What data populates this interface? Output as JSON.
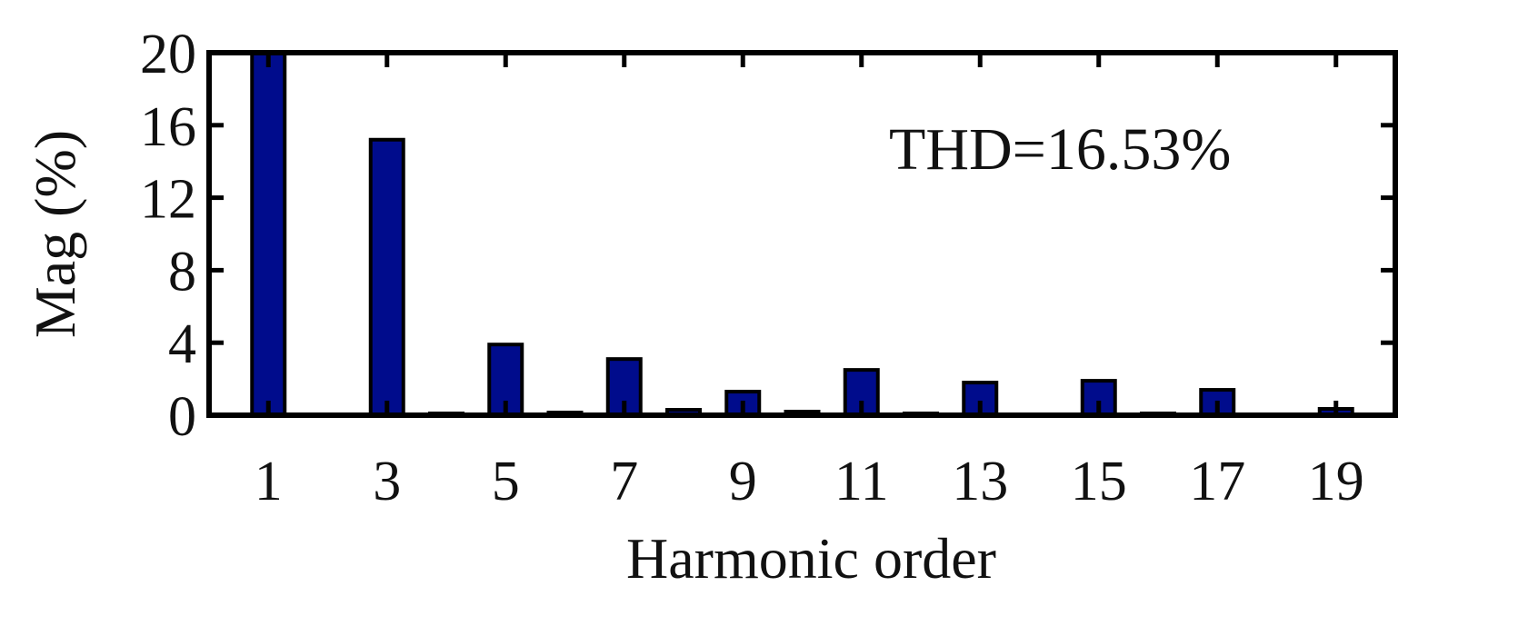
{
  "chart_data": {
    "type": "bar",
    "title": "",
    "xlabel": "Harmonic order",
    "ylabel": "Mag (%)",
    "annotation": "THD=16.53%",
    "ylim": [
      0,
      20
    ],
    "xlim": [
      0,
      20
    ],
    "y_ticks": [
      "0",
      "4",
      "8",
      "12",
      "16",
      "20"
    ],
    "x_ticks": [
      "1",
      "3",
      "5",
      "7",
      "9",
      "11",
      "13",
      "15",
      "17",
      "19"
    ],
    "categories": [
      "1",
      "2",
      "3",
      "4",
      "5",
      "6",
      "7",
      "8",
      "9",
      "10",
      "11",
      "12",
      "13",
      "14",
      "15",
      "16",
      "17",
      "18",
      "19"
    ],
    "values": [
      20,
      0.05,
      15.2,
      0.1,
      3.9,
      0.15,
      3.1,
      0.3,
      1.3,
      0.2,
      2.5,
      0.1,
      1.8,
      0.05,
      1.9,
      0.1,
      1.4,
      0.05,
      0.35
    ],
    "bar_color": "#000c8c",
    "grid": false
  }
}
